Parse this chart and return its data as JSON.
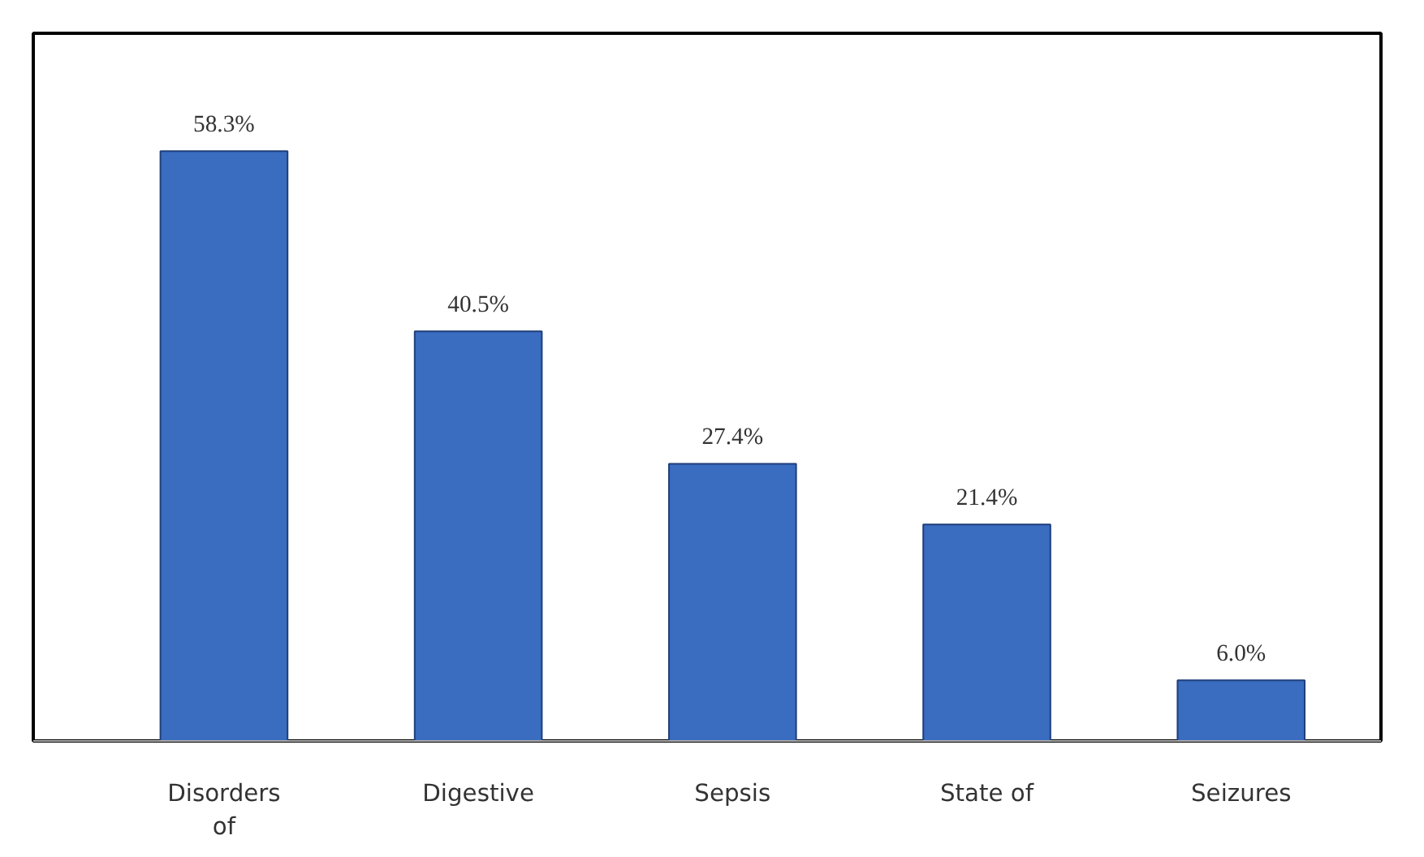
{
  "chart_data": {
    "type": "bar",
    "categories": [
      "Disorders\nof",
      "Digestive",
      "Sepsis",
      "State of",
      "Seizures"
    ],
    "values": [
      58.3,
      40.5,
      27.4,
      21.4,
      6.0
    ],
    "color": "#3a6cc0",
    "value_labels": [
      "58.3%",
      "40.5%",
      "27.4%",
      "21.4%",
      "6.0%"
    ],
    "grid": false
  }
}
